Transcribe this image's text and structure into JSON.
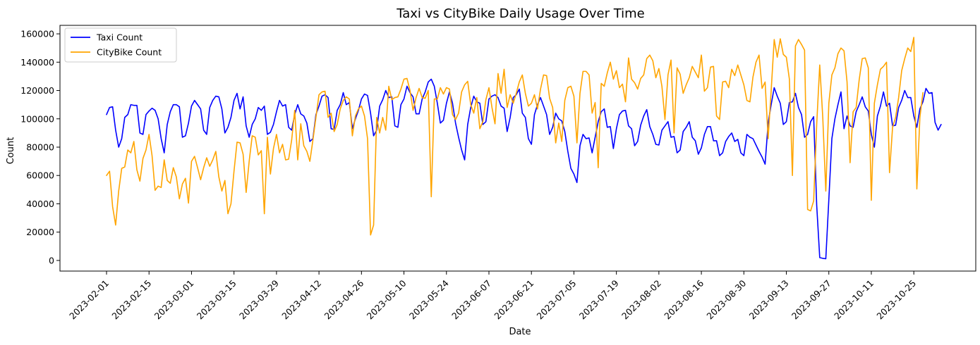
{
  "chart_data": {
    "type": "line",
    "title": "Taxi vs CityBike Daily Usage Over Time",
    "xlabel": "Date",
    "ylabel": "Count",
    "x_start": "2023-02-01",
    "x_end": "2023-10-31",
    "xticks": [
      "2023-02-01",
      "2023-02-15",
      "2023-03-01",
      "2023-03-15",
      "2023-03-29",
      "2023-04-12",
      "2023-04-26",
      "2023-05-10",
      "2023-05-24",
      "2023-06-07",
      "2023-06-21",
      "2023-07-05",
      "2023-07-19",
      "2023-08-02",
      "2023-08-16",
      "2023-08-30",
      "2023-09-13",
      "2023-09-27",
      "2023-10-11",
      "2023-10-25"
    ],
    "ylim": [
      -7500,
      166000
    ],
    "yticks": [
      0,
      20000,
      40000,
      60000,
      80000,
      100000,
      120000,
      140000,
      160000
    ],
    "ytick_labels": [
      "0",
      "20000",
      "40000",
      "60000",
      "80000",
      "100000",
      "120000",
      "140000",
      "160000"
    ],
    "grid": false,
    "legend": "top-left",
    "series": [
      {
        "name": "Taxi Count",
        "color": "#0000ff",
        "values": [
          103000,
          108000,
          108500,
          92000,
          80000,
          86000,
          101000,
          103000,
          110000,
          109500,
          109500,
          90000,
          89000,
          103000,
          105500,
          107500,
          106000,
          100000,
          86000,
          76000,
          96000,
          105000,
          110000,
          110000,
          108500,
          87000,
          88000,
          97000,
          109000,
          113000,
          110000,
          107000,
          92000,
          89000,
          108000,
          113000,
          116000,
          115500,
          107000,
          90000,
          94000,
          101000,
          113000,
          118000,
          107000,
          115500,
          95000,
          87000,
          96000,
          100000,
          108000,
          106000,
          109000,
          89000,
          90500,
          96000,
          105000,
          113000,
          109000,
          110000,
          94000,
          92000,
          103000,
          110000,
          103500,
          102000,
          97000,
          84000,
          86000,
          103000,
          109000,
          116000,
          117000,
          115000,
          93000,
          92500,
          106000,
          110000,
          118500,
          110000,
          111500,
          93000,
          100000,
          106000,
          114000,
          117500,
          116500,
          104000,
          88000,
          92000,
          109000,
          113500,
          120000,
          115000,
          115500,
          95000,
          94000,
          110000,
          114000,
          123000,
          118500,
          115500,
          103500,
          103500,
          114000,
          119000,
          126000,
          128000,
          123000,
          111000,
          97000,
          99000,
          111000,
          119000,
          111000,
          97000,
          87000,
          78000,
          71000,
          96000,
          108000,
          116000,
          112000,
          111000,
          96000,
          98000,
          114000,
          116000,
          117000,
          115000,
          109000,
          107500,
          91000,
          101000,
          115000,
          117000,
          121000,
          104000,
          101000,
          86000,
          82000,
          103000,
          110000,
          115000,
          109000,
          103000,
          89000,
          94000,
          104000,
          100000,
          98500,
          91000,
          77000,
          65000,
          61000,
          55000,
          81000,
          89000,
          86000,
          86500,
          76000,
          87000,
          98000,
          105000,
          107000,
          94000,
          94500,
          79000,
          93000,
          103000,
          105500,
          106000,
          95000,
          93000,
          81000,
          84000,
          95500,
          102000,
          106500,
          94500,
          89000,
          82000,
          81500,
          92000,
          95000,
          98000,
          87000,
          87500,
          76000,
          78000,
          91000,
          94000,
          98000,
          87000,
          84500,
          75000,
          79500,
          89000,
          94500,
          94500,
          84500,
          84500,
          74000,
          76000,
          84000,
          87500,
          90000,
          84000,
          85500,
          76000,
          74000,
          89000,
          87000,
          86000,
          81500,
          77000,
          73000,
          68000,
          97000,
          110000,
          122000,
          116000,
          111000,
          96000,
          98000,
          111500,
          112000,
          118000,
          108000,
          103000,
          87000,
          89000,
          98000,
          101500,
          39000,
          2000,
          1500,
          1200,
          43000,
          86000,
          100000,
          110000,
          119000,
          93000,
          102000,
          95000,
          94000,
          105000,
          110000,
          115500,
          108500,
          105500,
          89000,
          80000,
          102000,
          109000,
          119000,
          109000,
          111000,
          95000,
          95500,
          108000,
          113000,
          120000,
          115000,
          115000,
          102000,
          94000,
          107000,
          112000,
          121500,
          118000,
          118500,
          97500,
          92000,
          96000
        ],
        "dash": ""
      },
      {
        "name": "CityBike Count",
        "color": "#ffa500",
        "values": [
          60000,
          63000,
          38000,
          25000,
          49000,
          65000,
          66000,
          78000,
          76000,
          84000,
          64000,
          56000,
          72000,
          78000,
          89000,
          74000,
          49500,
          52500,
          51500,
          71000,
          56500,
          54500,
          65500,
          59000,
          43500,
          54000,
          58000,
          40500,
          70000,
          73500,
          65500,
          57000,
          65500,
          72500,
          66500,
          71000,
          77000,
          59000,
          49000,
          56500,
          33000,
          40000,
          63000,
          83500,
          83000,
          75000,
          48000,
          70000,
          88000,
          87000,
          74500,
          77500,
          33000,
          87000,
          61000,
          79000,
          89000,
          76000,
          82000,
          71000,
          71500,
          85000,
          106000,
          71000,
          96500,
          81000,
          77000,
          70000,
          85000,
          101000,
          117000,
          119000,
          119500,
          101000,
          104000,
          91000,
          96000,
          107000,
          113000,
          115500,
          114000,
          88000,
          102000,
          107000,
          109000,
          102000,
          86000,
          18000,
          25000,
          101000,
          90000,
          101000,
          92000,
          123000,
          113500,
          115000,
          115500,
          121000,
          128000,
          128500,
          120000,
          106000,
          115000,
          121500,
          115000,
          114500,
          120000,
          45000,
          114000,
          114000,
          122000,
          117500,
          122000,
          121000,
          103000,
          99500,
          104000,
          119000,
          124000,
          126500,
          110000,
          104000,
          115000,
          93000,
          98000,
          113500,
          122000,
          108000,
          96500,
          132000,
          118000,
          135000,
          108000,
          117000,
          111000,
          118000,
          126000,
          131000,
          118000,
          109000,
          111000,
          117000,
          107000,
          121000,
          131000,
          130500,
          114500,
          108000,
          83000,
          97000,
          84000,
          113000,
          122000,
          123000,
          116000,
          83000,
          118000,
          133500,
          133500,
          131000,
          104000,
          111500,
          65500,
          125000,
          123000,
          132500,
          140000,
          128000,
          134000,
          122000,
          124500,
          112000,
          143000,
          128000,
          125500,
          121000,
          128500,
          131000,
          142500,
          145000,
          141000,
          129000,
          135500,
          123000,
          99500,
          131000,
          141500,
          90000,
          136000,
          131500,
          118000,
          124000,
          129000,
          137000,
          133000,
          129000,
          145000,
          119500,
          122000,
          136500,
          137000,
          102000,
          99500,
          126000,
          126500,
          122000,
          135000,
          130500,
          138000,
          131000,
          124000,
          113000,
          112000,
          129500,
          140000,
          145000,
          121500,
          126000,
          86000,
          120000,
          156000,
          143500,
          156500,
          145500,
          143500,
          128000,
          60000,
          151500,
          156000,
          152500,
          148500,
          36000,
          35000,
          42000,
          96000,
          138000,
          101000,
          49000,
          111000,
          131000,
          136000,
          146000,
          150000,
          148000,
          126000,
          69000,
          105000,
          108000,
          127500,
          142500,
          143000,
          136000,
          42500,
          111000,
          124000,
          135000,
          137000,
          140000,
          62000,
          94000,
          101000,
          115000,
          134000,
          142500,
          150000,
          147500,
          157500,
          50500,
          101000,
          118500
        ],
        "dash": ""
      }
    ]
  }
}
